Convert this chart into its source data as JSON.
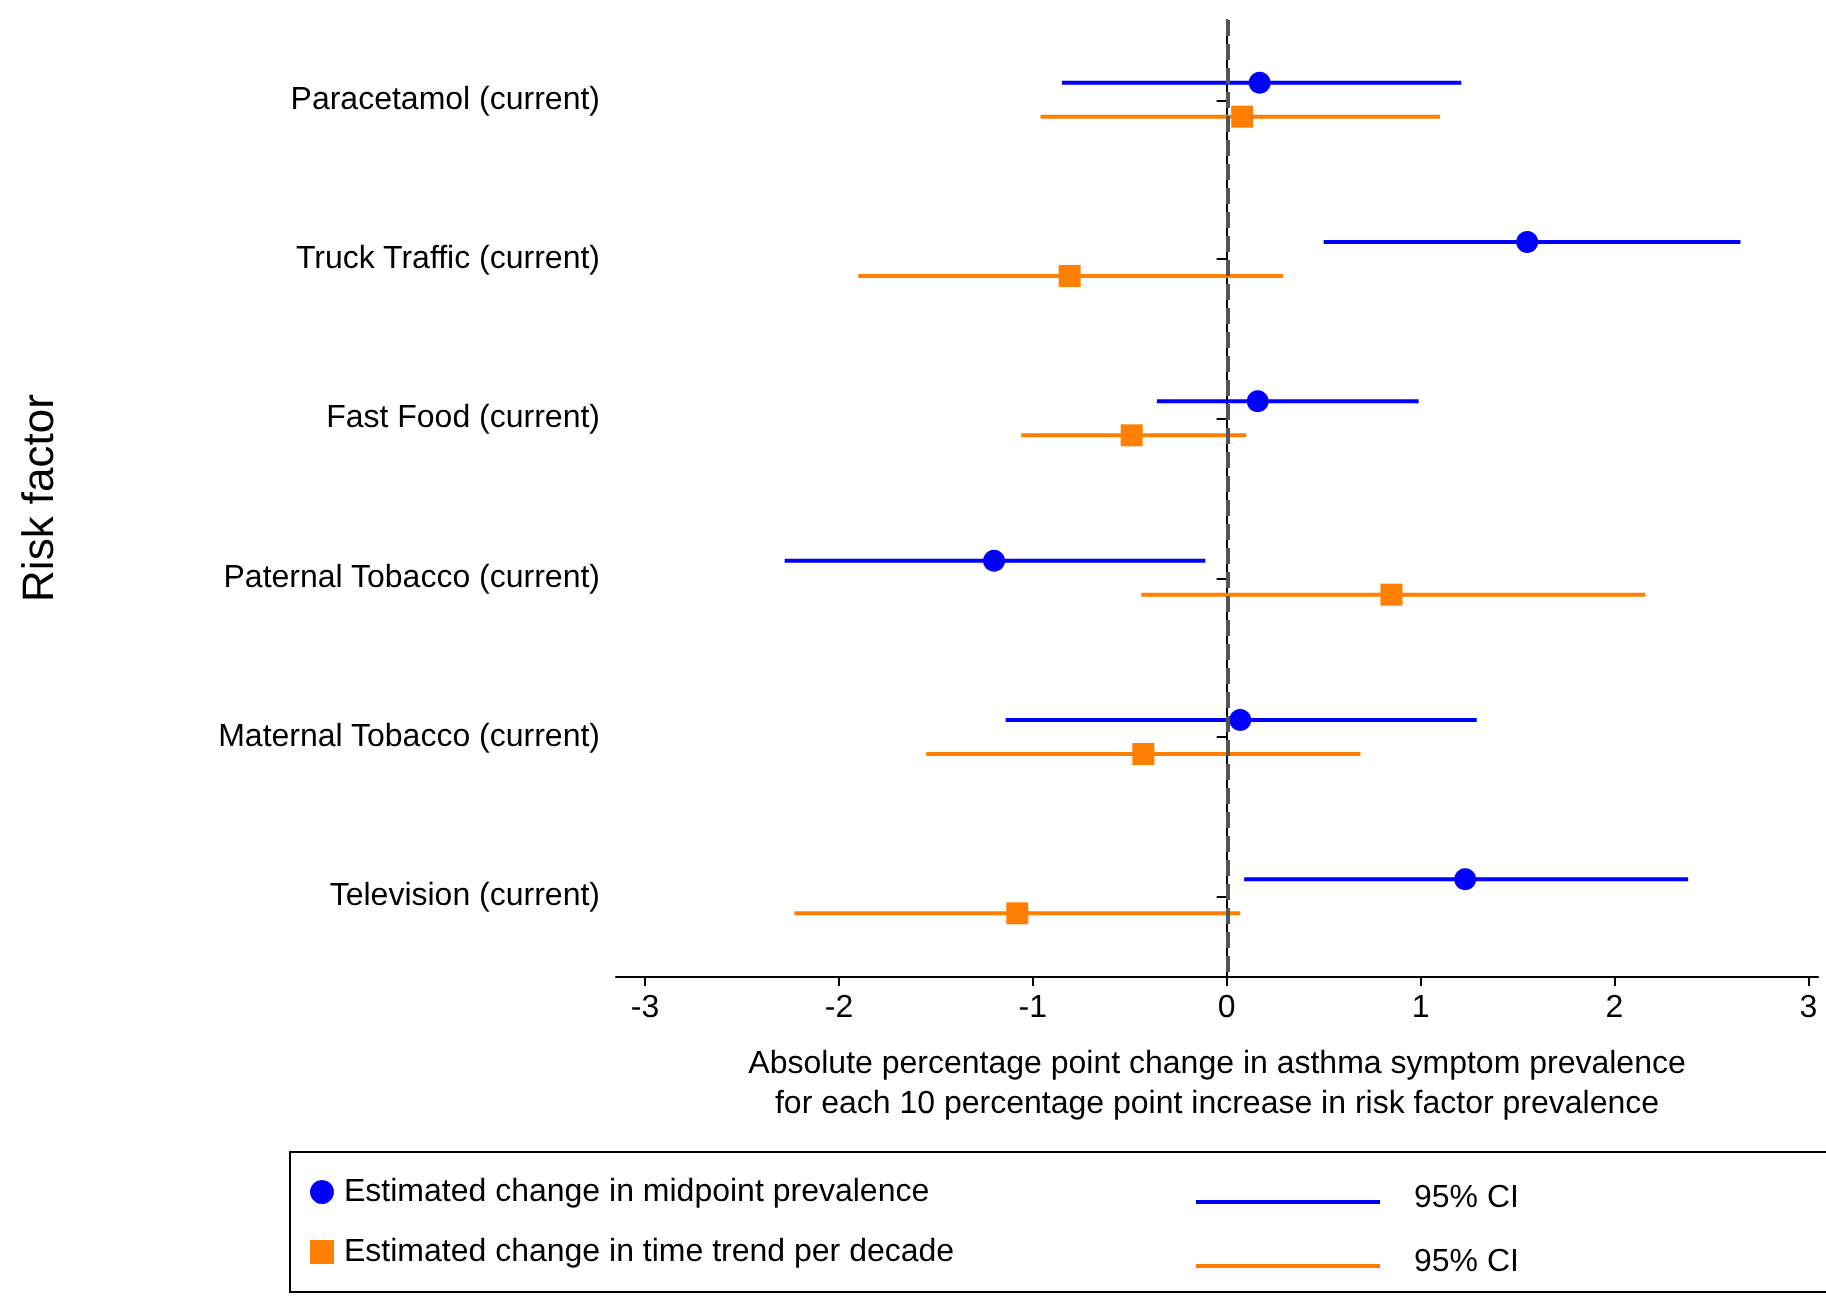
{
  "chart_data": {
    "type": "scatter",
    "orientation": "horizontal",
    "xlabel": "Absolute percentage point change in asthma symptom prevalence\nfor each 10 percentage point increase in risk factor prevalence",
    "ylabel": "Risk factor",
    "categories": [
      "Paracetamol (current)",
      "Truck Traffic (current)",
      "Fast Food (current)",
      "Paternal Tobacco (current)",
      "Maternal Tobacco (current)",
      "Television (current)"
    ],
    "series": [
      {
        "name": "Estimated change in midpoint prevalence",
        "color": "#0000ff",
        "marker": "circle",
        "values": [
          0.17,
          1.55,
          0.16,
          -1.2,
          0.07,
          1.23
        ],
        "errors": [
          [
            -0.85,
            1.21
          ],
          [
            0.5,
            2.65
          ],
          [
            -0.36,
            0.99
          ],
          [
            -2.28,
            -0.11
          ],
          [
            -1.14,
            1.29
          ],
          [
            0.09,
            2.38
          ]
        ]
      },
      {
        "name": "Estimated change in time trend per decade",
        "color": "#ff8000",
        "marker": "square",
        "values": [
          0.08,
          -0.81,
          -0.49,
          0.85,
          -0.43,
          -1.08
        ],
        "errors": [
          [
            -0.96,
            1.1
          ],
          [
            -1.9,
            0.29
          ],
          [
            -1.06,
            0.1
          ],
          [
            -0.44,
            2.16
          ],
          [
            -1.55,
            0.69
          ],
          [
            -2.23,
            0.07
          ]
        ]
      }
    ],
    "xlim": [
      -3.15,
      3.05
    ],
    "xticks": [
      -3,
      -2,
      -1,
      0,
      1,
      2,
      3
    ],
    "ref_lines": [
      {
        "axis": "x",
        "value": 0,
        "color": "#555555",
        "line_style": "dashed"
      }
    ],
    "annotations": [
      "95% CI",
      "95% CI"
    ],
    "legend": "bottom",
    "grid": false
  }
}
